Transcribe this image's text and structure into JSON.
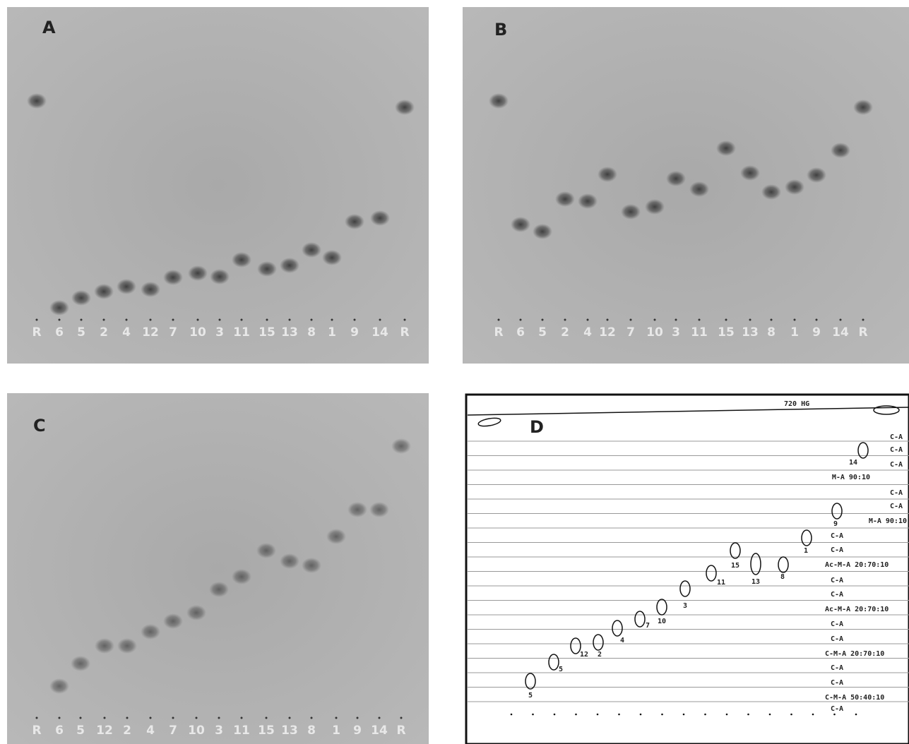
{
  "panels": [
    {
      "label": "A",
      "lanes": [
        "R",
        "6",
        "5",
        "2",
        "4",
        "12",
        "7",
        "10",
        "3",
        "11",
        "15",
        "13",
        "8",
        "1",
        "9",
        "14",
        "R"
      ]
    },
    {
      "label": "B",
      "lanes": [
        "R",
        "6",
        "5",
        "2",
        "4",
        "12",
        "7",
        "10",
        "3",
        "11",
        "15",
        "13",
        "8",
        "1",
        "9",
        "14",
        "R"
      ]
    },
    {
      "label": "C",
      "lanes": [
        "R",
        "6",
        "5",
        "12",
        "2",
        "4",
        "7",
        "10",
        "3",
        "11",
        "15",
        "13",
        "8",
        "1",
        "9",
        "14",
        "R"
      ]
    },
    {
      "label": "D",
      "header": "720 HG",
      "spot_labels": [
        "14",
        "9",
        "1",
        "15",
        "13",
        "8",
        "11",
        "3",
        "10",
        "7",
        "4",
        "2",
        "12",
        "5",
        "5"
      ],
      "solvent_labels": [
        "C-A",
        "C-A",
        "C-A",
        "M-A 90:10",
        "C-A",
        "C-A",
        "M-A 90:10",
        "C-A",
        "C-A",
        "Ac-M-A 20:70:10",
        "C-A",
        "C-A",
        "Ac-M-A 20:70:10",
        "C-A",
        "C-A",
        "C-M-A 20:70:10",
        "C-A",
        "C-A",
        "C-M-A 50:40:10",
        "C-A"
      ]
    }
  ]
}
